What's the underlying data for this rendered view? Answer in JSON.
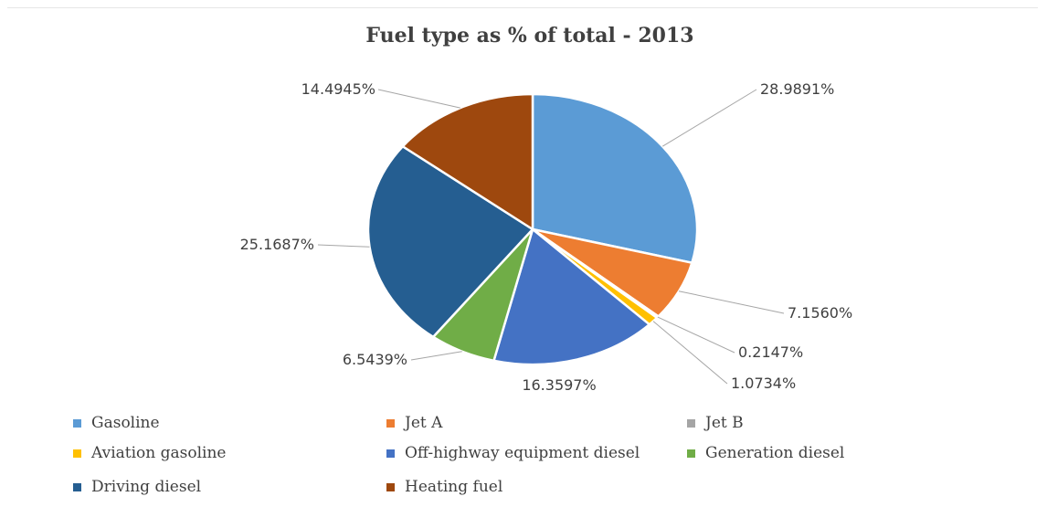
{
  "chart_data": {
    "type": "pie",
    "title": "Fuel type as % of total - 2013",
    "legend_position": "bottom",
    "slices": [
      {
        "name": "Gasoline",
        "value": 28.9891,
        "label": "28.9891%",
        "color": "#5B9BD5"
      },
      {
        "name": "Jet A",
        "value": 7.156,
        "label": "7.1560%",
        "color": "#ED7D31"
      },
      {
        "name": "Jet B",
        "value": 0.2147,
        "label": "0.2147%",
        "color": "#A5A5A5"
      },
      {
        "name": "Aviation gasoline",
        "value": 1.0734,
        "label": "1.0734%",
        "color": "#FFC000"
      },
      {
        "name": "Off-highway equipment diesel",
        "value": 16.3597,
        "label": "16.3597%",
        "color": "#4472C4"
      },
      {
        "name": "Generation diesel",
        "value": 6.5439,
        "label": "6.5439%",
        "color": "#70AD47"
      },
      {
        "name": "Driving diesel",
        "value": 25.1687,
        "label": "25.1687%",
        "color": "#255E91"
      },
      {
        "name": "Heating fuel",
        "value": 14.4945,
        "label": "14.4945%",
        "color": "#9E480E"
      }
    ]
  }
}
